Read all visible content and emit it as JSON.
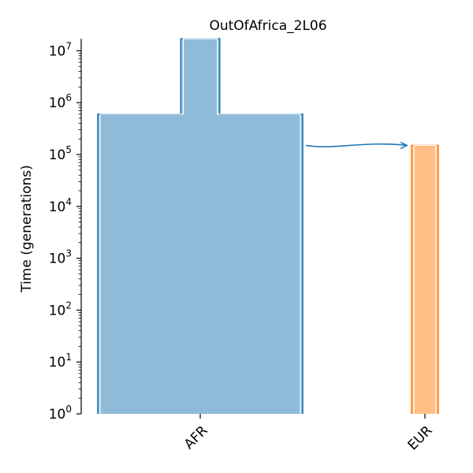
{
  "chart_data": {
    "type": "demography-tree",
    "title": "OutOfAfrica_2L06",
    "ylabel": "Time (generations)",
    "yscale": "log",
    "ylim": [
      1,
      17000000
    ],
    "yticks": [
      {
        "value": 1,
        "base": "10",
        "exp": "0"
      },
      {
        "value": 10,
        "base": "10",
        "exp": "1"
      },
      {
        "value": 100,
        "base": "10",
        "exp": "2"
      },
      {
        "value": 1000,
        "base": "10",
        "exp": "3"
      },
      {
        "value": 10000,
        "base": "10",
        "exp": "4"
      },
      {
        "value": 100000,
        "base": "10",
        "exp": "5"
      },
      {
        "value": 1000000,
        "base": "10",
        "exp": "6"
      },
      {
        "value": 10000000,
        "base": "10",
        "exp": "7"
      }
    ],
    "categories": [
      "AFR",
      "EUR"
    ],
    "populations": [
      {
        "name": "AFR",
        "fill": "#8fbbd9",
        "edge": "#1f77b4",
        "epochs": [
          {
            "start_time": 1,
            "end_time": 600000,
            "relative_width": 1.0
          },
          {
            "start_time": 600000,
            "end_time": 17000000,
            "relative_width": 0.19
          }
        ]
      },
      {
        "name": "EUR",
        "fill": "#ffbf86",
        "edge": "#ff7f0e",
        "epochs": [
          {
            "start_time": 1,
            "end_time": 150000,
            "relative_width": 0.13
          }
        ]
      }
    ],
    "migrations": [
      {
        "source": "AFR",
        "dest": "EUR",
        "time": 150000,
        "color": "#1f77b4"
      }
    ]
  }
}
